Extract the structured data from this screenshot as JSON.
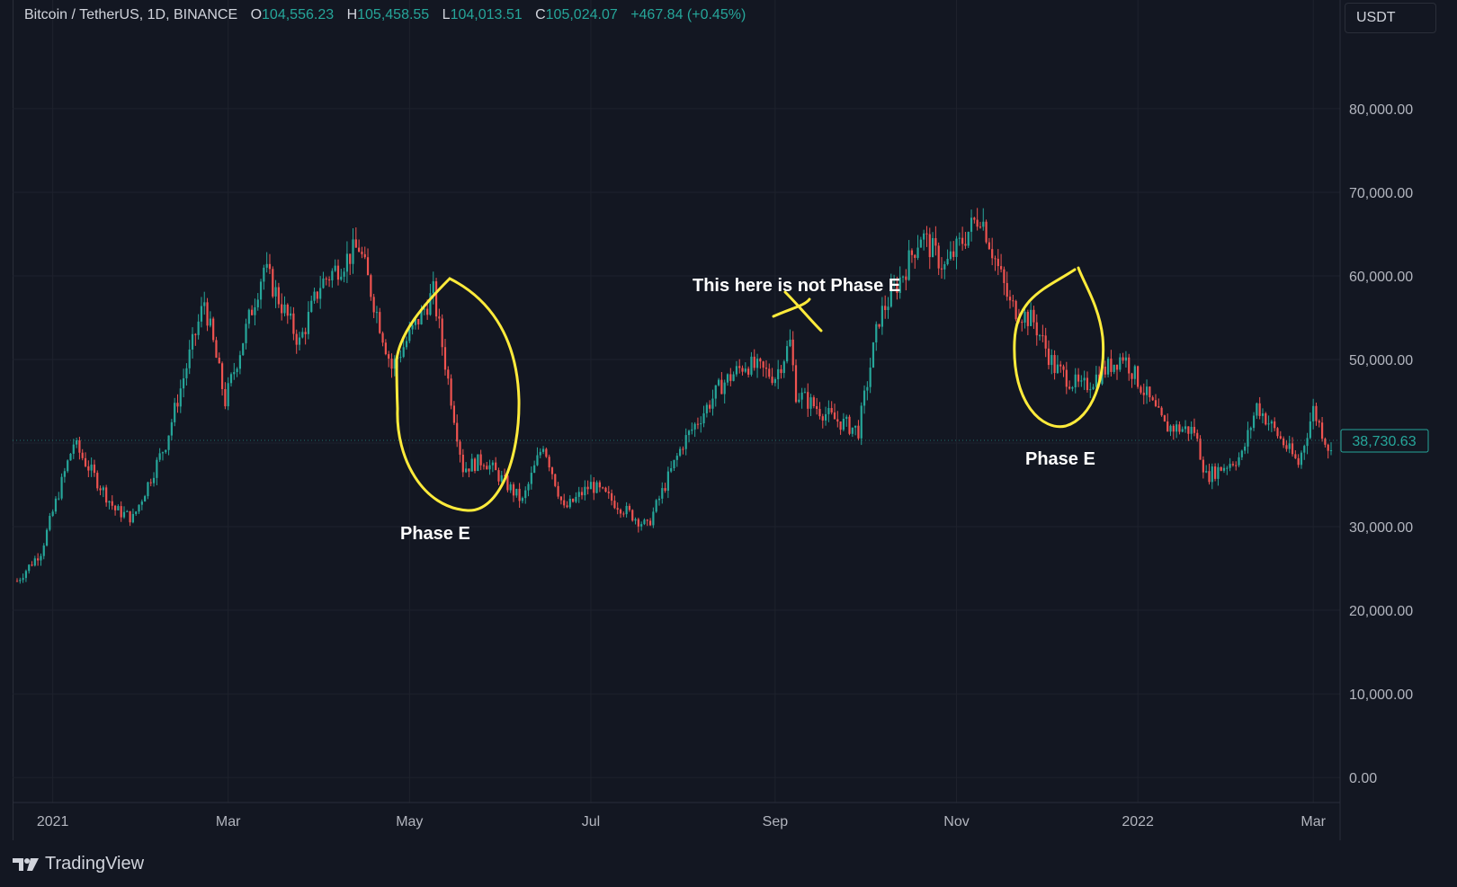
{
  "legend": {
    "symbol": "Bitcoin / TetherUS, 1D, BINANCE",
    "open_label": "O",
    "open": "104,556.23",
    "high_label": "H",
    "high": "105,458.55",
    "low_label": "L",
    "low": "104,013.51",
    "close_label": "C",
    "close": "105,024.07",
    "change": "+467.84 (+0.45%)"
  },
  "currency_button": "USDT",
  "last_price": "38,730.63",
  "branding": {
    "logo_text": "TradingView",
    "logo_icon": "tradingview-logo-icon"
  },
  "colors": {
    "up": "#26a69a",
    "down": "#ef5350",
    "background": "#131722",
    "grid": "#1e222d",
    "annotation": "#ffeb3b"
  },
  "annotations": [
    {
      "text": "Phase E",
      "kind": "circled-region"
    },
    {
      "text": "This here is not Phase E",
      "kind": "crossed-mark"
    },
    {
      "text": "Phase E",
      "kind": "circled-region"
    }
  ],
  "chart_data": {
    "type": "candlestick",
    "y_axis": {
      "ticks": [
        "80,000.00",
        "70,000.00",
        "60,000.00",
        "50,000.00",
        "40,000.00",
        "30,000.00",
        "20,000.00",
        "10,000.00",
        "0.00"
      ],
      "range": [
        -3000,
        93000
      ]
    },
    "x_axis": {
      "ticks": [
        "2021",
        "Mar",
        "May",
        "Jul",
        "Sep",
        "Nov",
        "2022",
        "Mar"
      ]
    },
    "series_anchors": [
      {
        "date": "2020-12-20",
        "close": 23500
      },
      {
        "date": "2020-12-28",
        "close": 27000
      },
      {
        "date": "2021-01-08",
        "close": 40000
      },
      {
        "date": "2021-01-22",
        "close": 32000
      },
      {
        "date": "2021-01-28",
        "close": 31000
      },
      {
        "date": "2021-02-08",
        "close": 40000
      },
      {
        "date": "2021-02-21",
        "close": 57000
      },
      {
        "date": "2021-02-28",
        "close": 45000
      },
      {
        "date": "2021-03-13",
        "close": 61000
      },
      {
        "date": "2021-03-25",
        "close": 52000
      },
      {
        "date": "2021-04-01",
        "close": 59000
      },
      {
        "date": "2021-04-14",
        "close": 63500
      },
      {
        "date": "2021-04-25",
        "close": 49000
      },
      {
        "date": "2021-05-09",
        "close": 58000
      },
      {
        "date": "2021-05-19",
        "close": 37000
      },
      {
        "date": "2021-05-26",
        "close": 38000
      },
      {
        "date": "2021-06-08",
        "close": 33000
      },
      {
        "date": "2021-06-15",
        "close": 40000
      },
      {
        "date": "2021-06-22",
        "close": 32000
      },
      {
        "date": "2021-07-01",
        "close": 35000
      },
      {
        "date": "2021-07-20",
        "close": 30000
      },
      {
        "date": "2021-08-01",
        "close": 40000
      },
      {
        "date": "2021-08-14",
        "close": 47000
      },
      {
        "date": "2021-08-22",
        "close": 49500
      },
      {
        "date": "2021-09-01",
        "close": 48000
      },
      {
        "date": "2021-09-06",
        "close": 52000
      },
      {
        "date": "2021-09-08",
        "close": 46000
      },
      {
        "date": "2021-09-20",
        "close": 43000
      },
      {
        "date": "2021-09-29",
        "close": 41500
      },
      {
        "date": "2021-10-06",
        "close": 55000
      },
      {
        "date": "2021-10-15",
        "close": 61000
      },
      {
        "date": "2021-10-20",
        "close": 65000
      },
      {
        "date": "2021-10-28",
        "close": 61000
      },
      {
        "date": "2021-11-09",
        "close": 67500
      },
      {
        "date": "2021-11-19",
        "close": 56500
      },
      {
        "date": "2021-11-27",
        "close": 54500
      },
      {
        "date": "2021-12-04",
        "close": 49000
      },
      {
        "date": "2021-12-13",
        "close": 46500
      },
      {
        "date": "2021-12-27",
        "close": 50500
      },
      {
        "date": "2022-01-10",
        "close": 42000
      },
      {
        "date": "2022-01-20",
        "close": 41500
      },
      {
        "date": "2022-01-24",
        "close": 36000
      },
      {
        "date": "2022-02-05",
        "close": 38500
      },
      {
        "date": "2022-02-10",
        "close": 44500
      },
      {
        "date": "2022-02-24",
        "close": 37500
      },
      {
        "date": "2022-03-01",
        "close": 44000
      },
      {
        "date": "2022-03-07",
        "close": 38730.63
      }
    ]
  }
}
